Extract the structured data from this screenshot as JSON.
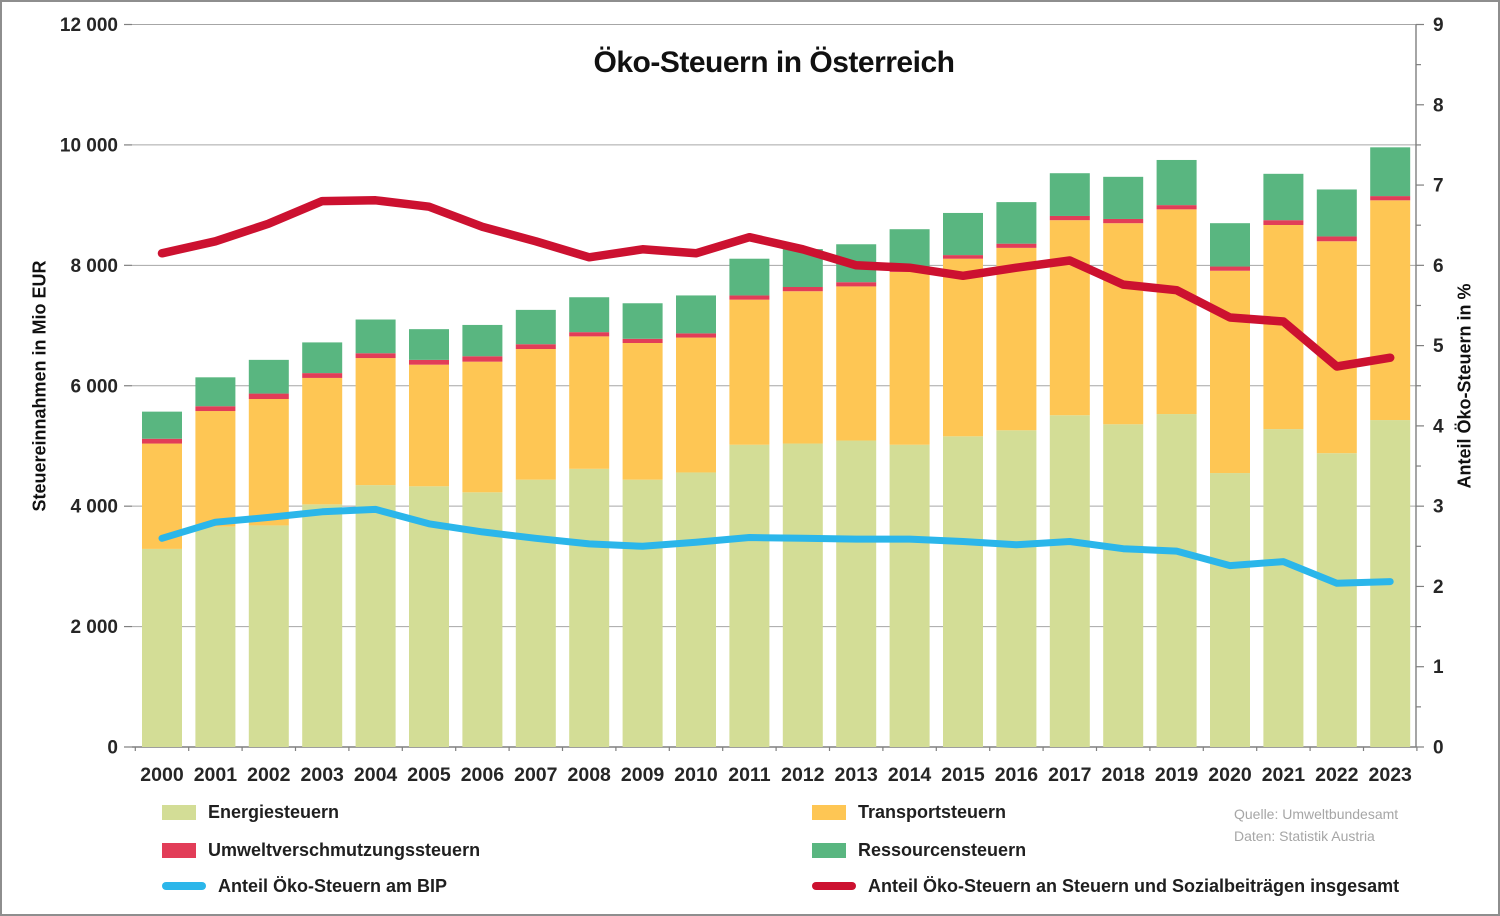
{
  "title": "Öko-Steuern in Österreich",
  "y_axis_left": {
    "title": "Steuereinnahmen in Mio EUR",
    "tick_labels": [
      "0",
      "2 000",
      "4 000",
      "6 000",
      "8 000",
      "10 000",
      "12 000"
    ],
    "max": 12000,
    "step": 2000
  },
  "y_axis_right": {
    "title": "Anteil Öko-Steuern in %",
    "tick_labels": [
      "0",
      "1",
      "2",
      "3",
      "4",
      "5",
      "6",
      "7",
      "8",
      "9"
    ],
    "max": 9,
    "step": 1
  },
  "source": {
    "line1": "Quelle: Umweltbundesamt",
    "line2": "Daten: Statistik Austria"
  },
  "palette": {
    "grid": "#a6a6a6",
    "axis": "#7f7f7f",
    "text": "#262626",
    "source_text": "#a6a6a6"
  },
  "chart_data": {
    "type": "combo_stacked_bar_line",
    "categories": [
      "2000",
      "2001",
      "2002",
      "2003",
      "2004",
      "2005",
      "2006",
      "2007",
      "2008",
      "2009",
      "2010",
      "2011",
      "2012",
      "2013",
      "2014",
      "2015",
      "2016",
      "2017",
      "2018",
      "2019",
      "2020",
      "2021",
      "2022",
      "2023"
    ],
    "ylim_left": [
      0,
      12000
    ],
    "ylim_right": [
      0,
      9
    ],
    "grid": "horizontal, every 2000",
    "legend_position": "bottom, two columns",
    "series": [
      {
        "name": "Energiesteuern",
        "type": "bar",
        "axis": "left",
        "color": "#d3dd96",
        "values": [
          3290,
          3660,
          3680,
          4030,
          4350,
          4330,
          4230,
          4440,
          4620,
          4440,
          4560,
          5020,
          5040,
          5090,
          5020,
          5160,
          5260,
          5510,
          5360,
          5530,
          4550,
          5280,
          4880,
          5430
        ]
      },
      {
        "name": "Transportsteuern",
        "type": "bar",
        "axis": "left",
        "color": "#fec654",
        "values": [
          1750,
          1920,
          2100,
          2100,
          2110,
          2020,
          2170,
          2170,
          2200,
          2270,
          2240,
          2410,
          2530,
          2560,
          2870,
          2950,
          3030,
          3240,
          3340,
          3400,
          3360,
          3390,
          3520,
          3650
        ]
      },
      {
        "name": "Umweltverschmutzungssteuern",
        "type": "bar",
        "axis": "left",
        "color": "#e23d58",
        "values": [
          80,
          80,
          90,
          80,
          80,
          80,
          90,
          80,
          70,
          70,
          70,
          70,
          70,
          70,
          70,
          60,
          70,
          70,
          70,
          70,
          70,
          80,
          80,
          70
        ]
      },
      {
        "name": "Ressourcensteuern",
        "type": "bar",
        "axis": "left",
        "color": "#59b680",
        "values": [
          450,
          480,
          560,
          510,
          560,
          510,
          520,
          570,
          580,
          590,
          630,
          610,
          630,
          630,
          640,
          700,
          690,
          710,
          700,
          750,
          720,
          770,
          780,
          810
        ]
      },
      {
        "name": "Anteil Öko-Steuern am BIP",
        "type": "line",
        "axis": "right",
        "color": "#2bb6ea",
        "values": [
          2.6,
          2.8,
          2.86,
          2.93,
          2.96,
          2.78,
          2.68,
          2.6,
          2.53,
          2.5,
          2.55,
          2.61,
          2.6,
          2.59,
          2.59,
          2.56,
          2.52,
          2.56,
          2.47,
          2.44,
          2.26,
          2.31,
          2.04,
          2.06
        ]
      },
      {
        "name": "Anteil Öko-Steuern an Steuern und Sozialbeiträgen insgesamt",
        "type": "line",
        "axis": "right",
        "color": "#cc1130",
        "values": [
          6.15,
          6.3,
          6.52,
          6.8,
          6.81,
          6.73,
          6.48,
          6.3,
          6.1,
          6.2,
          6.15,
          6.35,
          6.2,
          6.0,
          5.97,
          5.87,
          5.97,
          6.06,
          5.76,
          5.69,
          5.35,
          5.3,
          4.74,
          4.85
        ]
      }
    ]
  }
}
